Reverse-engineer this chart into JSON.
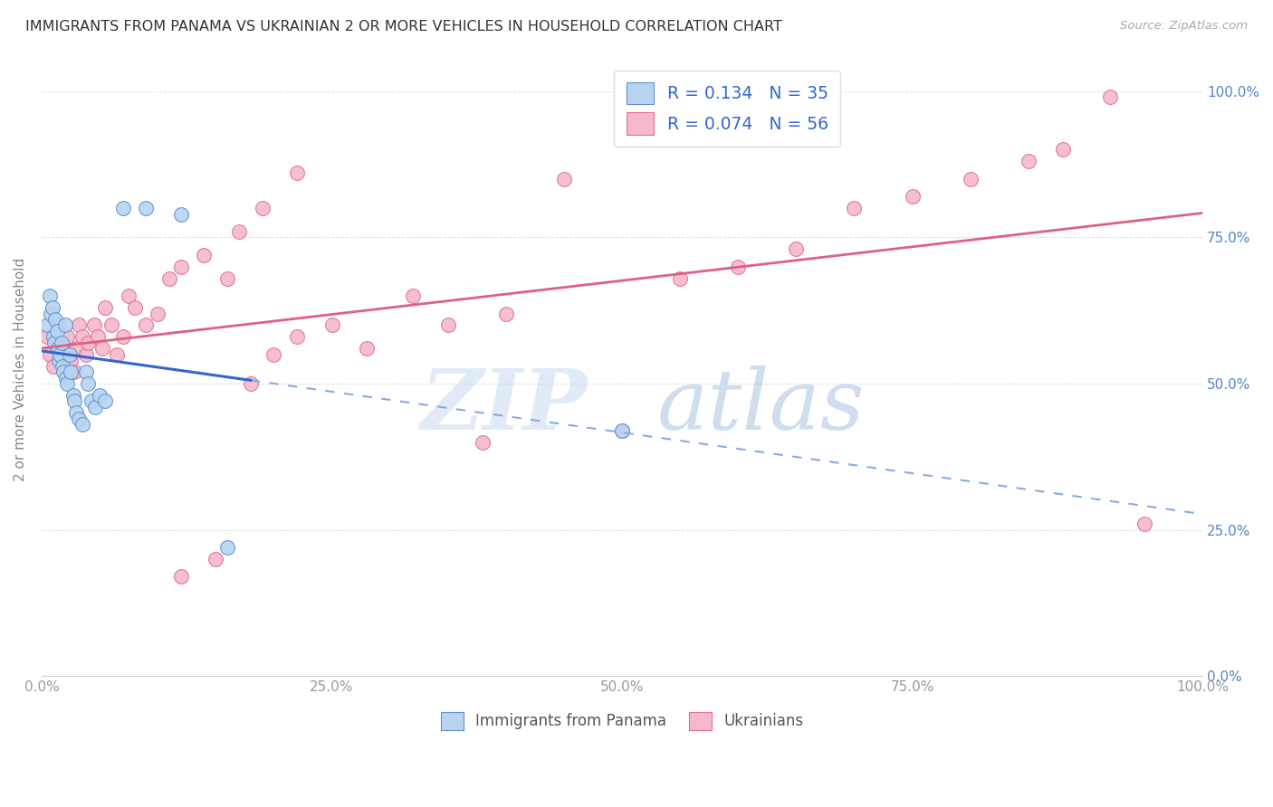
{
  "title": "IMMIGRANTS FROM PANAMA VS UKRAINIAN 2 OR MORE VEHICLES IN HOUSEHOLD CORRELATION CHART",
  "source": "Source: ZipAtlas.com",
  "ylabel": "2 or more Vehicles in Household",
  "ytick_labels": [
    "0.0%",
    "25.0%",
    "50.0%",
    "75.0%",
    "100.0%"
  ],
  "ytick_values": [
    0.0,
    0.25,
    0.5,
    0.75,
    1.0
  ],
  "xtick_labels": [
    "0.0%",
    "25.0%",
    "50.0%",
    "75.0%",
    "100.0%"
  ],
  "xtick_values": [
    0.0,
    0.25,
    0.5,
    0.75,
    1.0
  ],
  "legend_blue_r": "0.134",
  "legend_blue_n": "35",
  "legend_pink_r": "0.074",
  "legend_pink_n": "56",
  "blue_label": "Immigrants from Panama",
  "pink_label": "Ukrainians",
  "blue_fill_color": "#b8d4f0",
  "blue_edge_color": "#6090d0",
  "pink_fill_color": "#f5b8cc",
  "pink_edge_color": "#e07090",
  "blue_line_color": "#3366cc",
  "pink_line_color": "#e06080",
  "blue_dash_color": "#88aadd",
  "legend_r_color": "#3366cc",
  "legend_n_color": "#3366cc",
  "watermark_zip_color": "#c8ddf5",
  "watermark_atlas_color": "#a8c8f0",
  "background_color": "#ffffff",
  "grid_color": "#cccccc",
  "xlim": [
    0.0,
    1.0
  ],
  "ylim": [
    0.0,
    1.05
  ],
  "blue_scatter_x": [
    0.005,
    0.007,
    0.008,
    0.009,
    0.01,
    0.011,
    0.012,
    0.013,
    0.014,
    0.015,
    0.016,
    0.017,
    0.018,
    0.019,
    0.02,
    0.021,
    0.022,
    0.024,
    0.025,
    0.027,
    0.028,
    0.03,
    0.032,
    0.035,
    0.038,
    0.04,
    0.043,
    0.046,
    0.05,
    0.055,
    0.07,
    0.09,
    0.12,
    0.16,
    0.5
  ],
  "blue_scatter_y": [
    0.6,
    0.65,
    0.62,
    0.63,
    0.58,
    0.57,
    0.61,
    0.59,
    0.56,
    0.54,
    0.55,
    0.57,
    0.53,
    0.52,
    0.6,
    0.51,
    0.5,
    0.55,
    0.52,
    0.48,
    0.47,
    0.45,
    0.44,
    0.43,
    0.52,
    0.5,
    0.47,
    0.46,
    0.48,
    0.47,
    0.8,
    0.8,
    0.79,
    0.22,
    0.42
  ],
  "pink_scatter_x": [
    0.005,
    0.007,
    0.01,
    0.012,
    0.015,
    0.018,
    0.02,
    0.022,
    0.025,
    0.028,
    0.03,
    0.032,
    0.035,
    0.038,
    0.04,
    0.045,
    0.048,
    0.052,
    0.055,
    0.06,
    0.065,
    0.07,
    0.075,
    0.08,
    0.09,
    0.1,
    0.11,
    0.12,
    0.14,
    0.16,
    0.18,
    0.2,
    0.22,
    0.25,
    0.28,
    0.32,
    0.35,
    0.4,
    0.45,
    0.5,
    0.12,
    0.15,
    0.17,
    0.19,
    0.22,
    0.38,
    0.55,
    0.6,
    0.65,
    0.7,
    0.75,
    0.8,
    0.85,
    0.88,
    0.92,
    0.95
  ],
  "pink_scatter_y": [
    0.58,
    0.55,
    0.53,
    0.57,
    0.6,
    0.56,
    0.55,
    0.58,
    0.54,
    0.52,
    0.56,
    0.6,
    0.58,
    0.55,
    0.57,
    0.6,
    0.58,
    0.56,
    0.63,
    0.6,
    0.55,
    0.58,
    0.65,
    0.63,
    0.6,
    0.62,
    0.68,
    0.7,
    0.72,
    0.68,
    0.5,
    0.55,
    0.58,
    0.6,
    0.56,
    0.65,
    0.6,
    0.62,
    0.85,
    0.42,
    0.17,
    0.2,
    0.76,
    0.8,
    0.86,
    0.4,
    0.68,
    0.7,
    0.73,
    0.8,
    0.82,
    0.85,
    0.88,
    0.9,
    0.99,
    0.26
  ]
}
